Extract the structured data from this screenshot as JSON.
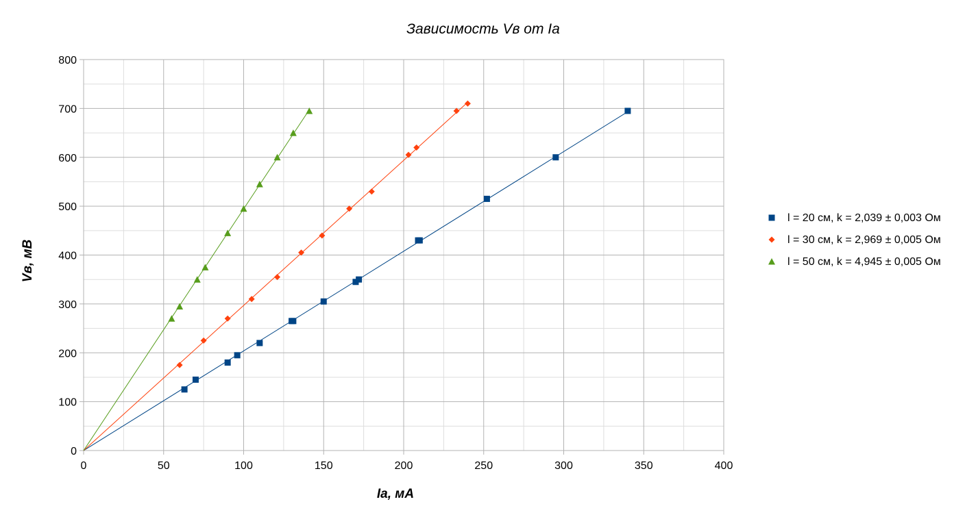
{
  "chart_data": {
    "type": "scatter",
    "title": "Зависимость Vв от Ia",
    "xlabel": "Ia, мА",
    "ylabel": "Vв, мВ",
    "xlim": [
      0,
      400
    ],
    "ylim": [
      0,
      800
    ],
    "x_ticks": [
      "0",
      "50",
      "100",
      "150",
      "200",
      "250",
      "300",
      "350",
      "400"
    ],
    "y_ticks": [
      "0",
      "100",
      "200",
      "300",
      "400",
      "500",
      "600",
      "700",
      "800"
    ],
    "grid": true,
    "legend_position": "right",
    "series": [
      {
        "name": "l = 20 см, k = 2,039 ± 0,003 Ом",
        "color": "#004586",
        "marker": "square",
        "trendline": {
          "slope": 2.039,
          "x_end": 340
        },
        "points": [
          [
            63,
            125
          ],
          [
            70,
            145
          ],
          [
            90,
            180
          ],
          [
            96,
            195
          ],
          [
            110,
            220
          ],
          [
            130,
            265
          ],
          [
            131,
            265
          ],
          [
            150,
            305
          ],
          [
            170,
            345
          ],
          [
            172,
            350
          ],
          [
            209,
            430
          ],
          [
            210,
            430
          ],
          [
            252,
            515
          ],
          [
            295,
            600
          ],
          [
            340,
            695
          ]
        ]
      },
      {
        "name": "l = 30 см, k = 2,969 ± 0,005 Ом",
        "color": "#ff420e",
        "marker": "diamond",
        "trendline": {
          "slope": 2.969,
          "x_end": 240
        },
        "points": [
          [
            60,
            175
          ],
          [
            75,
            225
          ],
          [
            90,
            270
          ],
          [
            105,
            310
          ],
          [
            121,
            355
          ],
          [
            136,
            405
          ],
          [
            149,
            440
          ],
          [
            166,
            495
          ],
          [
            180,
            530
          ],
          [
            203,
            605
          ],
          [
            208,
            620
          ],
          [
            233,
            695
          ],
          [
            240,
            710
          ]
        ]
      },
      {
        "name": "l = 50 см, k = 4,945 ± 0,005 Ом",
        "color": "#579d1c",
        "marker": "triangle",
        "trendline": {
          "slope": 4.945,
          "x_end": 141
        },
        "points": [
          [
            55,
            270
          ],
          [
            60,
            295
          ],
          [
            71,
            350
          ],
          [
            76,
            375
          ],
          [
            90,
            445
          ],
          [
            100,
            495
          ],
          [
            110,
            545
          ],
          [
            121,
            600
          ],
          [
            131,
            650
          ],
          [
            141,
            695
          ]
        ]
      }
    ]
  }
}
